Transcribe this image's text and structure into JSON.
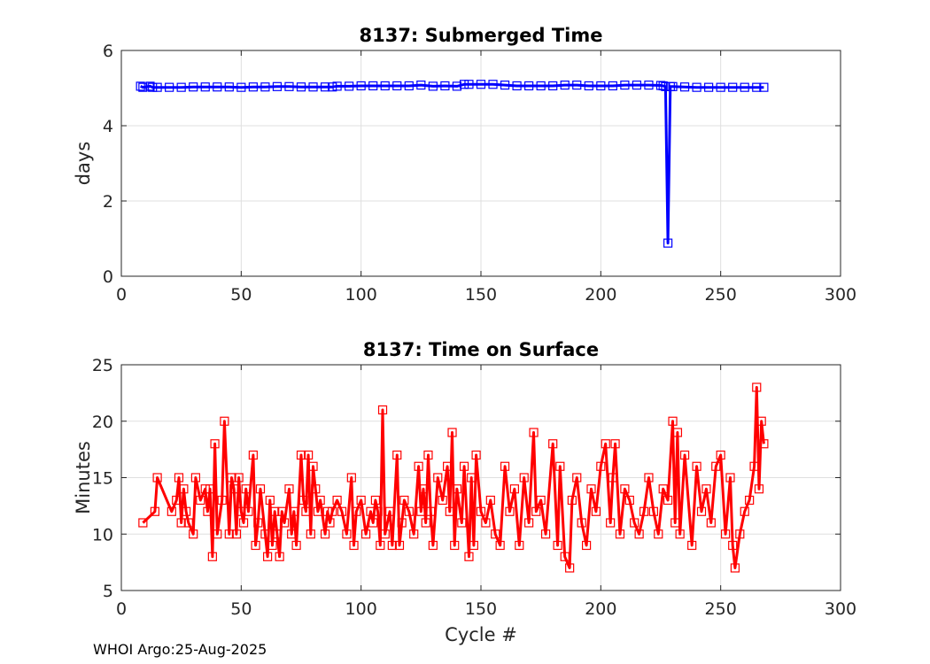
{
  "footer": "WHOI Argo:25-Aug-2025",
  "chart_data": [
    {
      "type": "line",
      "title": "8137: Submerged Time",
      "xlabel": "",
      "ylabel": "days",
      "xlim": [
        0,
        300
      ],
      "ylim": [
        0,
        6
      ],
      "xticks": [
        0,
        50,
        100,
        150,
        200,
        250,
        300
      ],
      "yticks": [
        0,
        2,
        4,
        6
      ],
      "grid": true,
      "color": "#0000ff",
      "marker": "square",
      "series": [
        {
          "x": [
            8,
            9,
            12,
            13,
            15,
            20,
            25,
            30,
            35,
            40,
            45,
            50,
            55,
            60,
            65,
            70,
            75,
            80,
            85,
            88,
            90,
            95,
            100,
            105,
            110,
            115,
            120,
            125,
            130,
            135,
            140,
            143,
            145,
            150,
            155,
            160,
            165,
            170,
            175,
            180,
            185,
            190,
            195,
            200,
            205,
            210,
            215,
            220,
            225,
            226,
            227,
            228,
            229,
            230,
            235,
            240,
            245,
            250,
            255,
            260,
            265,
            268
          ],
          "y": [
            5.05,
            5.02,
            5.05,
            5.02,
            5.02,
            5.02,
            5.02,
            5.03,
            5.03,
            5.03,
            5.03,
            5.02,
            5.03,
            5.03,
            5.04,
            5.04,
            5.03,
            5.03,
            5.03,
            5.03,
            5.05,
            5.05,
            5.06,
            5.06,
            5.06,
            5.06,
            5.06,
            5.08,
            5.05,
            5.06,
            5.05,
            5.1,
            5.1,
            5.1,
            5.1,
            5.08,
            5.06,
            5.06,
            5.06,
            5.06,
            5.08,
            5.08,
            5.06,
            5.06,
            5.06,
            5.08,
            5.08,
            5.08,
            5.07,
            5.06,
            5.04,
            0.88,
            5.04,
            5.04,
            5.03,
            5.02,
            5.02,
            5.02,
            5.02,
            5.02,
            5.02,
            5.02
          ]
        }
      ]
    },
    {
      "type": "line",
      "title": "8137: Time on Surface",
      "xlabel": "Cycle #",
      "ylabel": "Minutes",
      "xlim": [
        0,
        300
      ],
      "ylim": [
        5,
        25
      ],
      "xticks": [
        0,
        50,
        100,
        150,
        200,
        250,
        300
      ],
      "yticks": [
        5,
        10,
        15,
        20,
        25
      ],
      "grid": true,
      "color": "#ff0000",
      "marker": "square",
      "series": [
        {
          "x": [
            9,
            14,
            15,
            21,
            23,
            24,
            25,
            26,
            27,
            28,
            30,
            31,
            33,
            35,
            36,
            37,
            38,
            39,
            40,
            42,
            43,
            45,
            46,
            47,
            48,
            49,
            50,
            51,
            52,
            53,
            55,
            56,
            57,
            58,
            60,
            61,
            62,
            63,
            64,
            65,
            66,
            67,
            68,
            70,
            71,
            72,
            73,
            75,
            76,
            77,
            78,
            79,
            80,
            81,
            82,
            83,
            85,
            86,
            87,
            88,
            90,
            92,
            94,
            96,
            97,
            98,
            100,
            102,
            104,
            105,
            106,
            107,
            108,
            109,
            110,
            112,
            113,
            115,
            116,
            117,
            118,
            120,
            122,
            124,
            125,
            126,
            127,
            128,
            129,
            130,
            132,
            134,
            136,
            137,
            138,
            139,
            140,
            142,
            143,
            145,
            146,
            147,
            148,
            150,
            152,
            154,
            156,
            158,
            160,
            162,
            164,
            166,
            168,
            170,
            172,
            173,
            175,
            177,
            180,
            182,
            183,
            185,
            187,
            188,
            190,
            192,
            194,
            196,
            198,
            200,
            202,
            204,
            205,
            206,
            208,
            210,
            212,
            214,
            216,
            218,
            220,
            222,
            224,
            226,
            228,
            230,
            231,
            232,
            233,
            235,
            238,
            240,
            242,
            244,
            246,
            248,
            250,
            252,
            254,
            255,
            256,
            258,
            260,
            262,
            264,
            265,
            266,
            267,
            268
          ],
          "y": [
            11,
            12,
            15,
            12,
            13,
            15,
            11,
            14,
            12,
            11,
            10,
            15,
            13,
            14,
            12,
            14,
            8,
            18,
            10,
            13,
            20,
            10,
            15,
            14,
            10,
            15,
            12,
            11,
            14,
            12,
            17,
            9,
            11,
            14,
            10,
            8,
            13,
            9,
            12,
            10,
            8,
            12,
            11,
            14,
            10,
            12,
            9,
            17,
            13,
            12,
            17,
            10,
            16,
            14,
            12,
            13,
            10,
            12,
            11,
            12,
            13,
            12,
            10,
            15,
            9,
            12,
            13,
            10,
            12,
            11,
            13,
            12,
            9,
            21,
            10,
            12,
            9,
            17,
            9,
            11,
            13,
            12,
            10,
            16,
            12,
            14,
            11,
            17,
            12,
            9,
            15,
            13,
            16,
            12,
            19,
            9,
            14,
            11,
            16,
            8,
            15,
            9,
            17,
            12,
            11,
            13,
            10,
            9,
            16,
            12,
            14,
            9,
            15,
            11,
            19,
            12,
            13,
            10,
            18,
            9,
            16,
            8,
            7,
            13,
            15,
            11,
            9,
            14,
            12,
            16,
            18,
            11,
            15,
            18,
            10,
            14,
            13,
            11,
            10,
            12,
            15,
            12,
            10,
            14,
            13,
            20,
            11,
            19,
            10,
            17,
            9,
            16,
            12,
            14,
            11,
            16,
            17,
            10,
            15,
            9,
            7,
            10,
            12,
            13,
            16,
            23,
            14,
            20,
            18
          ]
        }
      ]
    }
  ]
}
